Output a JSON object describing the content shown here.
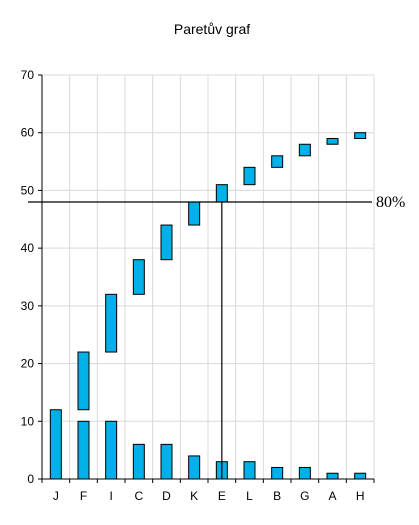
{
  "chart_data": {
    "type": "bar",
    "title": "Paretův graf",
    "categories": [
      "J",
      "F",
      "I",
      "C",
      "D",
      "K",
      "E",
      "L",
      "B",
      "G",
      "A",
      "H"
    ],
    "values": [
      12,
      10,
      10,
      6,
      6,
      4,
      3,
      3,
      2,
      2,
      1,
      1
    ],
    "cumulative": [
      [
        0,
        12
      ],
      [
        12,
        22
      ],
      [
        22,
        32
      ],
      [
        32,
        38
      ],
      [
        38,
        44
      ],
      [
        44,
        48
      ],
      [
        48,
        51
      ],
      [
        51,
        54
      ],
      [
        54,
        56
      ],
      [
        56,
        58
      ],
      [
        58,
        59
      ],
      [
        59,
        60
      ]
    ],
    "ylim": [
      0,
      70
    ],
    "yticks": [
      0,
      10,
      20,
      30,
      40,
      50,
      60,
      70
    ],
    "grid": true,
    "bar_color": "#00b0e8",
    "reference_line": {
      "value": 48,
      "label": "80%",
      "category": "E"
    }
  }
}
